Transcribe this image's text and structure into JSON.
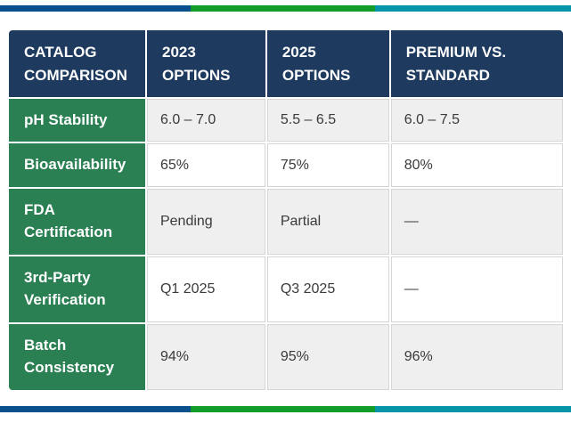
{
  "accent_bar": {
    "segments": [
      {
        "name": "blue",
        "color": "#0a508e"
      },
      {
        "name": "green",
        "color": "#129c2a"
      },
      {
        "name": "teal",
        "color": "#0795a9"
      }
    ]
  },
  "table": {
    "header": {
      "bg_color": "#1e3a5f",
      "text_color": "#ffffff",
      "columns": [
        {
          "label": "CATALOG COMPARISON"
        },
        {
          "label": "2023 OPTIONS"
        },
        {
          "label": "2025 OPTIONS"
        },
        {
          "label": "PREMIUM VS. STANDARD"
        }
      ]
    },
    "label_column": {
      "bg_color": "#2a7f53",
      "text_color": "#ffffff"
    },
    "row_colors": {
      "odd_bg": "#efefef",
      "even_bg": "#ffffff",
      "border": "#d6d6d6",
      "text": "#3a3a3a"
    },
    "rows": [
      {
        "label": "pH Stability",
        "values": [
          "6.0 – 7.0",
          "5.5 – 6.5",
          "6.0 – 7.5"
        ]
      },
      {
        "label": "Bioavailability",
        "values": [
          "65%",
          "75%",
          "80%"
        ]
      },
      {
        "label": "FDA Certification",
        "values": [
          "Pending",
          "Partial",
          "—"
        ]
      },
      {
        "label": "3rd-Party Verification",
        "values": [
          "Q1 2025",
          "Q3 2025",
          "—"
        ]
      },
      {
        "label": "Batch Consistency",
        "values": [
          "94%",
          "95%",
          "96%"
        ]
      }
    ]
  }
}
